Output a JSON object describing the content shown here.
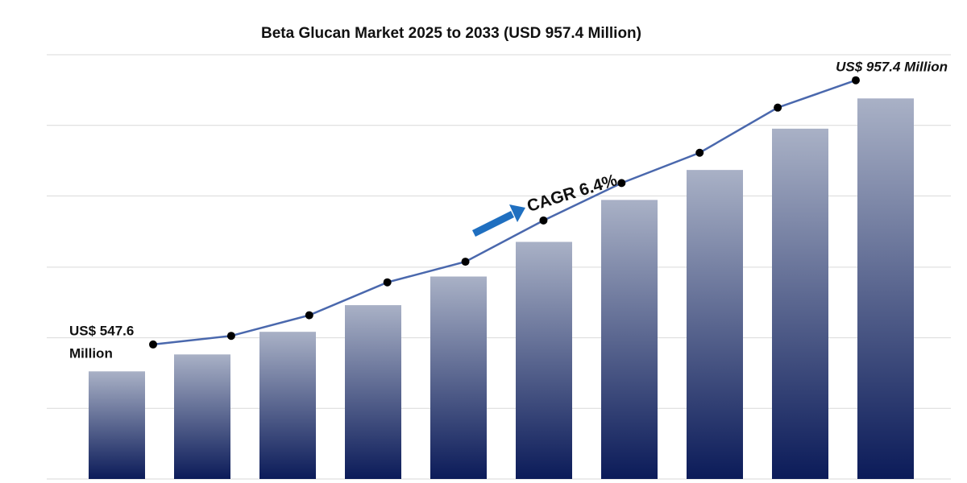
{
  "chart_data": {
    "type": "bar_line",
    "title": "Beta Glucan Market 2025 to 2033 (USD 957.4 Million)",
    "categories": [
      null,
      null,
      null,
      null,
      null,
      null,
      null,
      null,
      null,
      null
    ],
    "series": [
      {
        "type": "bar",
        "colors": [
          "#a9b1c6",
          "#0b1b59"
        ],
        "values": [
          547.6,
          573,
          607,
          647,
          690,
          742,
          805,
          850,
          912,
          957.4
        ]
      },
      {
        "type": "line",
        "axis": "y2",
        "color": "#4a68ad",
        "marker_color": "#000000",
        "values": [
          547.6,
          561,
          593,
          644,
          676,
          740,
          798,
          845,
          915,
          957.4
        ]
      }
    ],
    "ylim": [
      386,
      1023
    ],
    "yticks": [
      386,
      492,
      598,
      704,
      811,
      917,
      1023
    ],
    "y2lim": [
      339,
      997
    ],
    "grid": true,
    "start_label": [
      "US$ 547.6",
      "Million"
    ],
    "end_label": "US$ 957.4 Million",
    "cagr_label": "CAGR 6.4%"
  }
}
